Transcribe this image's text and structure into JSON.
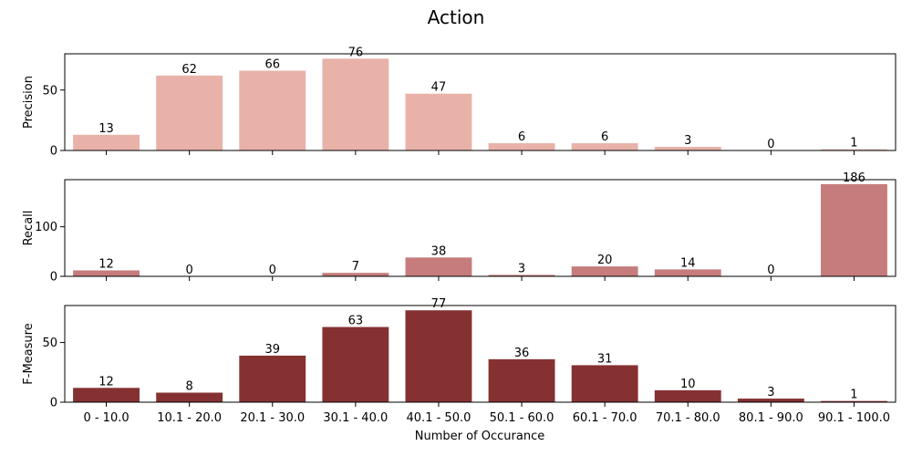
{
  "chart_data": {
    "type": "bar",
    "title": "Action",
    "xlabel": "Number of Occurance",
    "categories": [
      "0 - 10.0",
      "10.1 - 20.0",
      "20.1 - 30.0",
      "30.1 - 40.0",
      "40.1 - 50.0",
      "50.1 - 60.0",
      "60.1 - 70.0",
      "70.1 - 80.0",
      "80.1 - 90.0",
      "90.1 - 100.0"
    ],
    "panels": [
      {
        "ylabel": "Precision",
        "color": "#e8b2a8",
        "values": [
          13,
          62,
          66,
          76,
          47,
          6,
          6,
          3,
          0,
          1
        ],
        "yticks": [
          0,
          50
        ],
        "ylim": [
          0,
          80
        ]
      },
      {
        "ylabel": "Recall",
        "color": "#c67c7c",
        "values": [
          12,
          0,
          0,
          7,
          38,
          3,
          20,
          14,
          0,
          186
        ],
        "yticks": [
          0,
          100
        ],
        "ylim": [
          0,
          195
        ]
      },
      {
        "ylabel": "F-Measure",
        "color": "#853132",
        "values": [
          12,
          8,
          39,
          63,
          77,
          36,
          31,
          10,
          3,
          1
        ],
        "yticks": [
          0,
          50
        ],
        "ylim": [
          0,
          81
        ]
      }
    ]
  }
}
